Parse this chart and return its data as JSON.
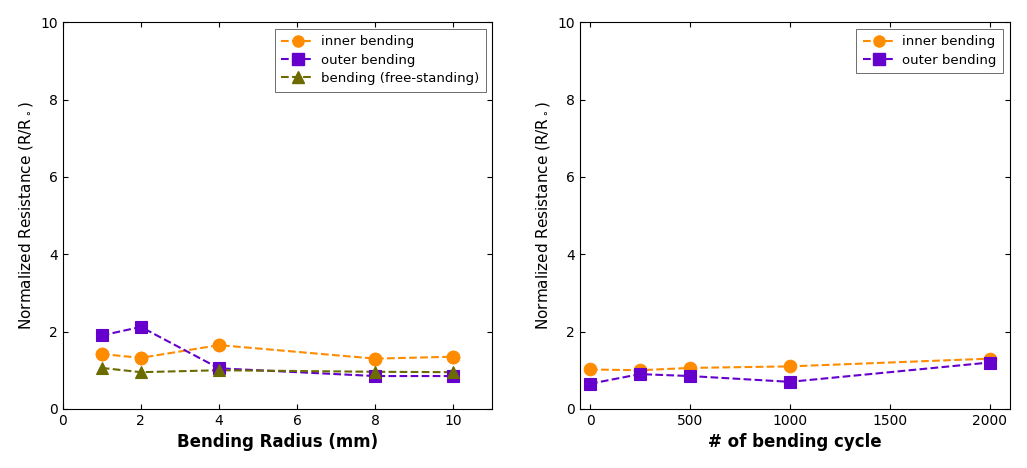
{
  "left": {
    "x": [
      1,
      2,
      4,
      8,
      10
    ],
    "inner_bending": [
      1.42,
      1.32,
      1.65,
      1.3,
      1.35
    ],
    "outer_bending": [
      1.9,
      2.12,
      1.05,
      0.85,
      0.85
    ],
    "free_standing": [
      1.06,
      0.95,
      1.0,
      0.96,
      0.95
    ],
    "xlabel": "Bending Radius (mm)",
    "xlim": [
      0,
      11
    ],
    "xticks": [
      0,
      2,
      4,
      6,
      8,
      10
    ]
  },
  "right": {
    "x": [
      0,
      250,
      500,
      1000,
      2000
    ],
    "inner_bending": [
      1.02,
      1.0,
      1.06,
      1.1,
      1.3
    ],
    "outer_bending": [
      0.65,
      0.9,
      0.85,
      0.7,
      1.2
    ],
    "xlabel": "# of bending cycle",
    "xlim": [
      -50,
      2100
    ],
    "xticks": [
      0,
      500,
      1000,
      1500,
      2000
    ]
  },
  "ylim": [
    0,
    10
  ],
  "yticks": [
    0,
    2,
    4,
    6,
    8,
    10
  ],
  "inner_color": "#FF8C00",
  "outer_color": "#6600CC",
  "free_color": "#6B6B00",
  "legend1": [
    "inner bending",
    "outer bending",
    "bending (free-standing)"
  ],
  "legend2": [
    "inner bending",
    "outer bending"
  ],
  "bg_color": "#ffffff",
  "marker_size": 9,
  "line_width": 1.5
}
